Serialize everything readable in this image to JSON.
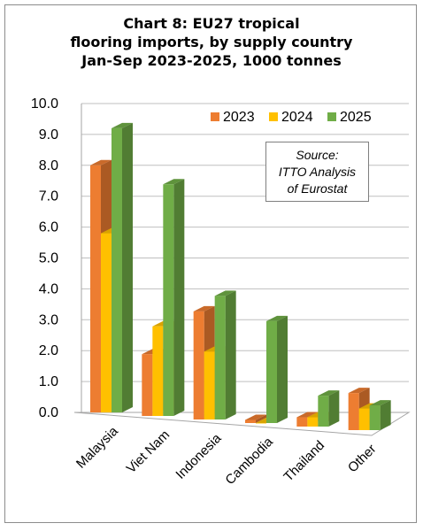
{
  "chart_data": {
    "type": "bar",
    "title_lines": [
      "Chart 8: EU27 tropical",
      "flooring imports, by supply country",
      "Jan-Sep 2023-2025, 1000 tonnes"
    ],
    "categories": [
      "Malaysia",
      "Viet Nam",
      "Indonesia",
      "Cambodia",
      "Thailand",
      "Other"
    ],
    "series": [
      {
        "name": "2023",
        "values": [
          8.0,
          2.0,
          3.5,
          0.1,
          0.3,
          1.2
        ]
      },
      {
        "name": "2024",
        "values": [
          5.8,
          2.9,
          2.2,
          0.0,
          0.3,
          0.7
        ]
      },
      {
        "name": "2025",
        "values": [
          9.2,
          7.5,
          4.0,
          3.3,
          1.0,
          0.8
        ]
      }
    ],
    "y_ticks": [
      "0.0",
      "1.0",
      "2.0",
      "3.0",
      "4.0",
      "5.0",
      "6.0",
      "7.0",
      "8.0",
      "9.0",
      "10.0"
    ],
    "ylim": [
      0,
      10
    ],
    "legend_position": "top-right",
    "grid": true,
    "annotation_lines": [
      "Source:",
      "ITTO Analysis",
      "of Eurostat"
    ]
  },
  "colors": {
    "series": [
      "#ED7D31",
      "#FFC000",
      "#70AD47"
    ],
    "gridline": "#bfbfbf",
    "axis": "#a6a6a6"
  }
}
